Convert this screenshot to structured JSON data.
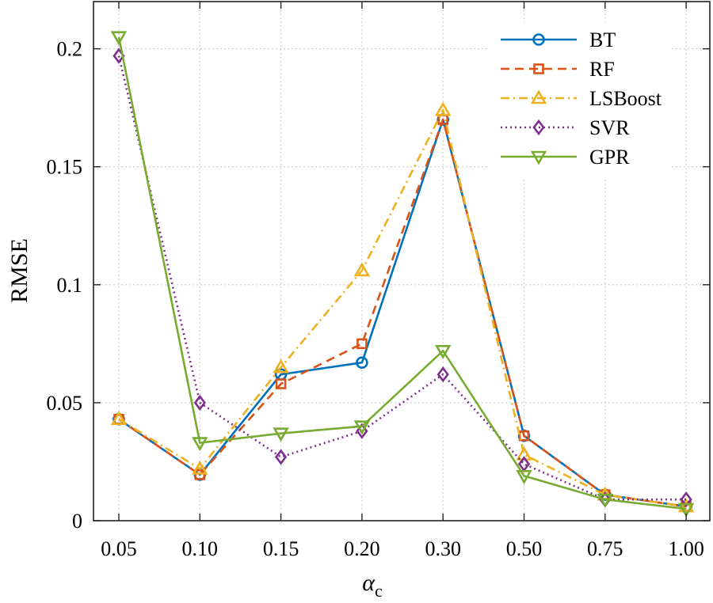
{
  "chart_data": {
    "type": "line",
    "xlabel": "α",
    "xlabel_sub": "c",
    "ylabel": "RMSE",
    "categories": [
      "0.05",
      "0.10",
      "0.15",
      "0.20",
      "0.30",
      "0.50",
      "0.75",
      "1.00"
    ],
    "ylim": [
      0,
      0.22
    ],
    "yticks": [
      0,
      0.05,
      0.1,
      0.15,
      0.2
    ],
    "ytick_labels": [
      "0",
      "0.05",
      "0.1",
      "0.15",
      "0.2"
    ],
    "grid": true,
    "legend_position": "top-right",
    "series": [
      {
        "name": "BT",
        "color": "#0072bd",
        "dash": "solid",
        "marker": "circle",
        "values": [
          0.043,
          0.0195,
          0.062,
          0.067,
          0.17,
          0.036,
          0.011,
          0.006
        ]
      },
      {
        "name": "RF",
        "color": "#d95319",
        "dash": "dashed",
        "marker": "square",
        "values": [
          0.043,
          0.0195,
          0.058,
          0.075,
          0.17,
          0.036,
          0.011,
          0.006
        ]
      },
      {
        "name": "LSBoost",
        "color": "#edb120",
        "dash": "dashdot",
        "marker": "triangle-up",
        "values": [
          0.043,
          0.022,
          0.065,
          0.106,
          0.174,
          0.028,
          0.011,
          0.006
        ]
      },
      {
        "name": "SVR",
        "color": "#7e2f8e",
        "dash": "dotted",
        "marker": "diamond",
        "values": [
          0.197,
          0.05,
          0.027,
          0.038,
          0.062,
          0.024,
          0.009,
          0.009
        ]
      },
      {
        "name": "GPR",
        "color": "#77ac30",
        "dash": "solid",
        "marker": "triangle-down",
        "values": [
          0.205,
          0.033,
          0.037,
          0.04,
          0.072,
          0.019,
          0.009,
          0.005
        ]
      }
    ]
  }
}
